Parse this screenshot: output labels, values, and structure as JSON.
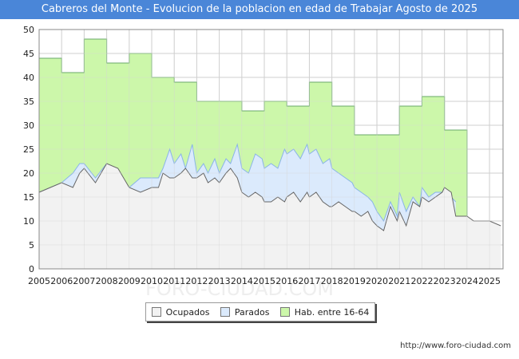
{
  "chart_data": {
    "type": "area",
    "title": "Cabreros del Monte - Evolucion de la poblacion en edad de Trabajar Agosto de 2025",
    "xlabel": "",
    "ylabel": "",
    "ylim": [
      0,
      50
    ],
    "yticks": [
      0,
      5,
      10,
      15,
      20,
      25,
      30,
      35,
      40,
      45,
      50
    ],
    "xlim": [
      2005,
      2025.6
    ],
    "xticks": [
      "2005",
      "2006",
      "2007",
      "2008",
      "2009",
      "2010",
      "2011",
      "2012",
      "2013",
      "2014",
      "2015",
      "2016",
      "2017",
      "2018",
      "2019",
      "2020",
      "2021",
      "2022",
      "2023",
      "2024",
      "2025"
    ],
    "grid": true,
    "legend_position": "bottom",
    "colors": {
      "hab_fill": "#ccf7aa",
      "hab_line": "#6aaa6a",
      "parados_fill": "#dbeafc",
      "parados_line": "#8ab4e8",
      "ocupados_fill": "#f2f2f2",
      "ocupados_line": "#666666",
      "grid": "#cccccc"
    },
    "series": [
      {
        "name": "Hab. entre 16-64",
        "step": true,
        "x": [
          2005,
          2006,
          2007,
          2008,
          2009,
          2010,
          2011,
          2012,
          2013,
          2014,
          2015,
          2016,
          2017,
          2018,
          2019,
          2020,
          2021,
          2022,
          2023,
          2024
        ],
        "values": [
          44,
          41,
          48,
          43,
          45,
          40,
          39,
          35,
          35,
          33,
          35,
          34,
          39,
          34,
          28,
          28,
          34,
          36,
          29,
          0
        ]
      },
      {
        "name": "Parados",
        "x": [
          2005,
          2005.5,
          2006,
          2006.5,
          2006.8,
          2007,
          2007.5,
          2008,
          2008.5,
          2009,
          2009.5,
          2010,
          2010.3,
          2010.5,
          2010.8,
          2011,
          2011.3,
          2011.5,
          2011.8,
          2012,
          2012.3,
          2012.5,
          2012.8,
          2013,
          2013.3,
          2013.5,
          2013.8,
          2014,
          2014.3,
          2014.6,
          2014.9,
          2015,
          2015.3,
          2015.6,
          2015.9,
          2016,
          2016.3,
          2016.6,
          2016.9,
          2017,
          2017.3,
          2017.6,
          2017.9,
          2018,
          2018.3,
          2018.6,
          2018.9,
          2019,
          2019.3,
          2019.6,
          2019.8,
          2020,
          2020.3,
          2020.6,
          2020.9,
          2021,
          2021.3,
          2021.6,
          2021.9,
          2022,
          2022.3,
          2022.6,
          2022.9,
          2023,
          2023.3,
          2023.5
        ],
        "values": [
          16,
          17,
          18,
          20,
          22,
          22,
          19,
          22,
          20,
          17,
          19,
          19,
          19,
          21,
          25,
          22,
          24,
          21,
          26,
          20,
          22,
          20,
          23,
          20,
          23,
          22,
          26,
          21,
          20,
          24,
          23,
          21,
          22,
          21,
          25,
          24,
          25,
          23,
          26,
          24,
          25,
          22,
          23,
          21,
          20,
          19,
          18,
          17,
          16,
          15,
          14,
          12,
          10,
          14,
          11,
          16,
          12,
          15,
          13,
          17,
          15,
          16,
          16,
          17,
          15,
          14
        ]
      },
      {
        "name": "Ocupados",
        "x": [
          2005,
          2005.5,
          2006,
          2006.5,
          2006.8,
          2007,
          2007.5,
          2008,
          2008.5,
          2009,
          2009.5,
          2010,
          2010.3,
          2010.5,
          2010.8,
          2011,
          2011.3,
          2011.5,
          2011.8,
          2012,
          2012.3,
          2012.5,
          2012.8,
          2013,
          2013.3,
          2013.5,
          2013.8,
          2014,
          2014.3,
          2014.6,
          2014.9,
          2015,
          2015.3,
          2015.6,
          2015.9,
          2016,
          2016.3,
          2016.6,
          2016.9,
          2017,
          2017.3,
          2017.6,
          2017.9,
          2018,
          2018.3,
          2018.6,
          2018.9,
          2019,
          2019.3,
          2019.6,
          2019.8,
          2020,
          2020.3,
          2020.6,
          2020.9,
          2021,
          2021.3,
          2021.6,
          2021.9,
          2022,
          2022.3,
          2022.6,
          2022.9,
          2023,
          2023.3,
          2023.5,
          2024,
          2024.3,
          2025,
          2025.5
        ],
        "values": [
          16,
          17,
          18,
          17,
          20,
          21,
          18,
          22,
          21,
          17,
          16,
          17,
          17,
          20,
          19,
          19,
          20,
          21,
          19,
          19,
          20,
          18,
          19,
          18,
          20,
          21,
          19,
          16,
          15,
          16,
          15,
          14,
          14,
          15,
          14,
          15,
          16,
          14,
          16,
          15,
          16,
          14,
          13,
          13,
          14,
          13,
          12,
          12,
          11,
          12,
          10,
          9,
          8,
          13,
          10,
          12,
          9,
          14,
          13,
          15,
          14,
          15,
          16,
          17,
          16,
          11,
          11,
          10,
          10,
          9
        ]
      }
    ]
  },
  "legend": {
    "items": [
      {
        "label": "Ocupados"
      },
      {
        "label": "Parados"
      },
      {
        "label": "Hab. entre 16-64"
      }
    ]
  },
  "source": "http://www.foro-ciudad.com",
  "watermark": "FORO-CIUDAD.COM"
}
